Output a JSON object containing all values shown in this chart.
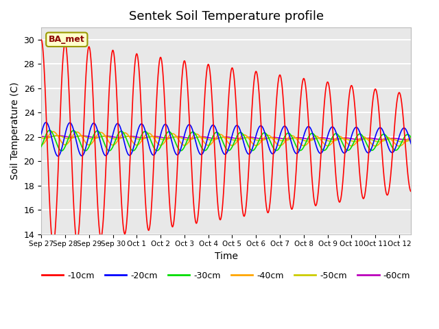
{
  "title": "Sentek Soil Temperature profile",
  "xlabel": "Time",
  "ylabel": "Soil Temperature (C)",
  "ylim": [
    14,
    31
  ],
  "yticks": [
    14,
    16,
    18,
    20,
    22,
    24,
    26,
    28,
    30
  ],
  "annotation_text": "BA_met",
  "annotation_color": "#8B0000",
  "annotation_bg": "#FFFFCC",
  "annotation_edge": "#999900",
  "bg_color": "#E8E8E8",
  "series": {
    "-10cm": {
      "color": "#FF0000",
      "linewidth": 1.2
    },
    "-20cm": {
      "color": "#0000FF",
      "linewidth": 1.2
    },
    "-30cm": {
      "color": "#00DD00",
      "linewidth": 1.2
    },
    "-40cm": {
      "color": "#FFA500",
      "linewidth": 1.2
    },
    "-50cm": {
      "color": "#CCCC00",
      "linewidth": 1.2
    },
    "-60cm": {
      "color": "#BB00BB",
      "linewidth": 1.2
    }
  },
  "x_tick_labels": [
    "Sep 27",
    "Sep 28",
    "Sep 29",
    "Sep 30",
    "Oct 1",
    "Oct 2",
    "Oct 3",
    "Oct 4",
    "Oct 5",
    "Oct 6",
    "Oct 7",
    "Oct 8",
    "Oct 9",
    "Oct 10",
    "Oct 11",
    "Oct 12"
  ],
  "num_days": 15.5,
  "grid_color": "#FFFFFF",
  "grid_linewidth": 1.5
}
